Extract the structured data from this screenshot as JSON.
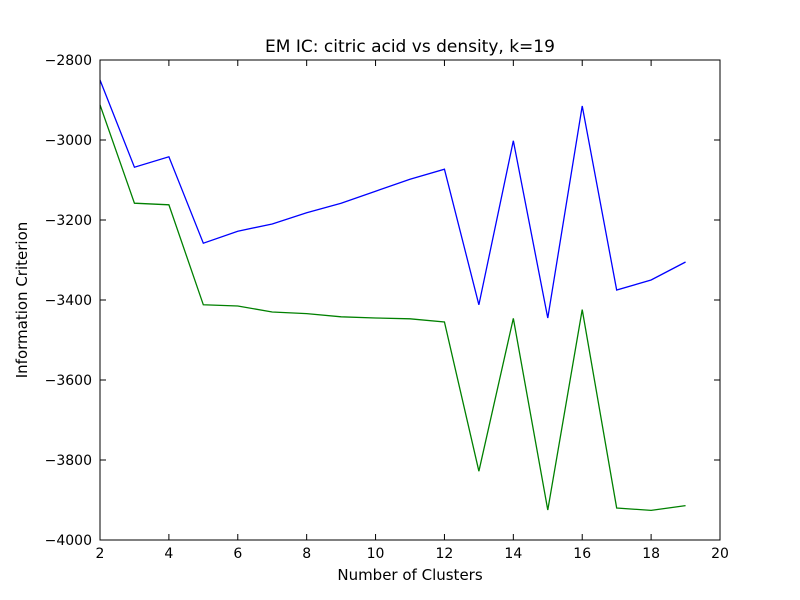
{
  "chart_data": {
    "type": "line",
    "title": "EM IC: citric acid vs density, k=19",
    "xlabel": "Number of Clusters",
    "ylabel": "Information Criterion",
    "xlim": [
      2,
      20
    ],
    "ylim": [
      -4000,
      -2800
    ],
    "xticks": [
      2,
      4,
      6,
      8,
      10,
      12,
      14,
      16,
      18,
      20
    ],
    "yticks": [
      -4000,
      -3800,
      -3600,
      -3400,
      -3200,
      -3000,
      -2800
    ],
    "xtick_labels": [
      "2",
      "4",
      "6",
      "8",
      "10",
      "12",
      "14",
      "16",
      "18",
      "20"
    ],
    "ytick_labels": [
      "−4000",
      "−3800",
      "−3600",
      "−3400",
      "−3200",
      "−3000",
      "−2800"
    ],
    "grid": false,
    "x": [
      2,
      3,
      4,
      5,
      6,
      7,
      8,
      9,
      10,
      11,
      12,
      13,
      14,
      15,
      16,
      17,
      18,
      19
    ],
    "series": [
      {
        "color": "#0000ff",
        "values": [
          -2850,
          -3068,
          -3042,
          -3258,
          -3228,
          -3210,
          -3182,
          -3158,
          -3128,
          -3098,
          -3073,
          -3412,
          -3002,
          -3445,
          -2915,
          -3375,
          -3350,
          -3305
        ]
      },
      {
        "color": "#008000",
        "values": [
          -2912,
          -3158,
          -3162,
          -3412,
          -3415,
          -3430,
          -3434,
          -3442,
          -3445,
          -3447,
          -3455,
          -3828,
          -3446,
          -3925,
          -3424,
          -3920,
          -3926,
          -3914
        ]
      }
    ]
  }
}
